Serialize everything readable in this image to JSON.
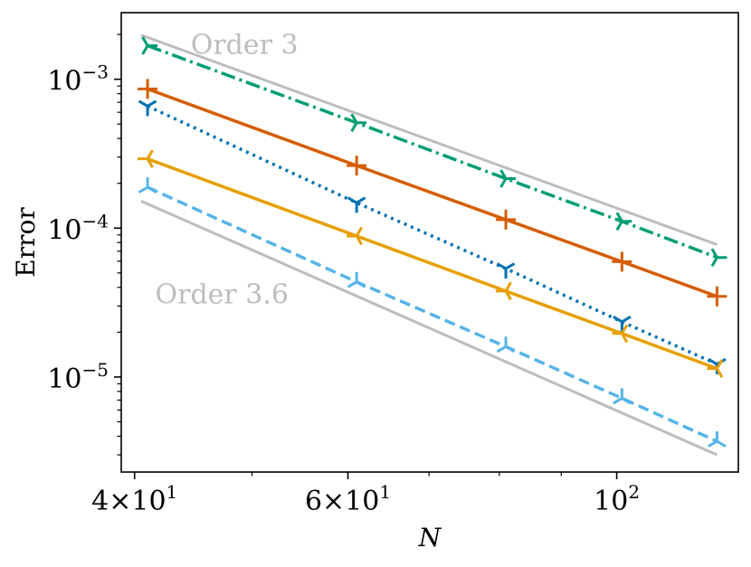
{
  "chart_data": {
    "type": "line",
    "xlabel": "N",
    "ylabel": "Error",
    "xscale": "log",
    "yscale": "log",
    "xlim": [
      39,
      126
    ],
    "ylim": [
      2.3e-06,
      0.0028
    ],
    "grid": false,
    "legend": "none",
    "x_ticks": [
      {
        "value": 40,
        "mantissa": "4",
        "exp": "1"
      },
      {
        "value": 60,
        "mantissa": "6",
        "exp": "1"
      },
      {
        "value": 100,
        "mantissa": "",
        "exp": "2"
      }
    ],
    "y_ticks": [
      {
        "value": 0.001,
        "exp": "−3"
      },
      {
        "value": 0.0001,
        "exp": "−4"
      },
      {
        "value": 1e-05,
        "exp": "−5"
      }
    ],
    "annotations": [
      {
        "text": "Order 3",
        "x": 44.5,
        "y": 0.0017
      },
      {
        "text": "Order 3.6",
        "x": 41.6,
        "y": 3.6e-05
      }
    ],
    "reference_lines": [
      {
        "slope_label": "Order 3",
        "x": [
          40.5,
          121
        ],
        "y": [
          0.00198,
          7.75e-05
        ],
        "color": "#bdbdbd"
      },
      {
        "slope_label": "Order 3.6",
        "x": [
          40.5,
          121
        ],
        "y": [
          0.000152,
          3e-06
        ],
        "color": "#bdbdbd"
      }
    ],
    "series": [
      {
        "color": "#009E73",
        "dash": "dashdot",
        "marker": "tri_left",
        "x": [
          41,
          61,
          81,
          101,
          121
        ],
        "y": [
          0.00168,
          0.00051,
          0.000215,
          0.000111,
          6.35e-05
        ]
      },
      {
        "color": "#D55E00",
        "dash": "solid",
        "marker": "plus",
        "x": [
          41,
          61,
          81,
          101,
          121
        ],
        "y": [
          0.00086,
          0.000263,
          0.000114,
          5.95e-05,
          3.48e-05
        ]
      },
      {
        "color": "#0072B2",
        "dash": "dotted",
        "marker": "tri_down",
        "x": [
          41,
          61,
          81,
          101,
          121
        ],
        "y": [
          0.00066,
          0.000148,
          5.35e-05,
          2.35e-05,
          1.22e-05
        ]
      },
      {
        "color": "#E69F00",
        "dash": "solid",
        "marker": "tri_right",
        "x": [
          41,
          61,
          81,
          101,
          121
        ],
        "y": [
          0.000292,
          8.85e-05,
          3.78e-05,
          1.96e-05,
          1.14e-05
        ]
      },
      {
        "color": "#56B4E9",
        "dash": "dashed",
        "marker": "tri_up",
        "x": [
          41,
          61,
          81,
          101,
          121
        ],
        "y": [
          0.000188,
          4.35e-05,
          1.6e-05,
          7.2e-06,
          3.7e-06
        ]
      }
    ]
  }
}
